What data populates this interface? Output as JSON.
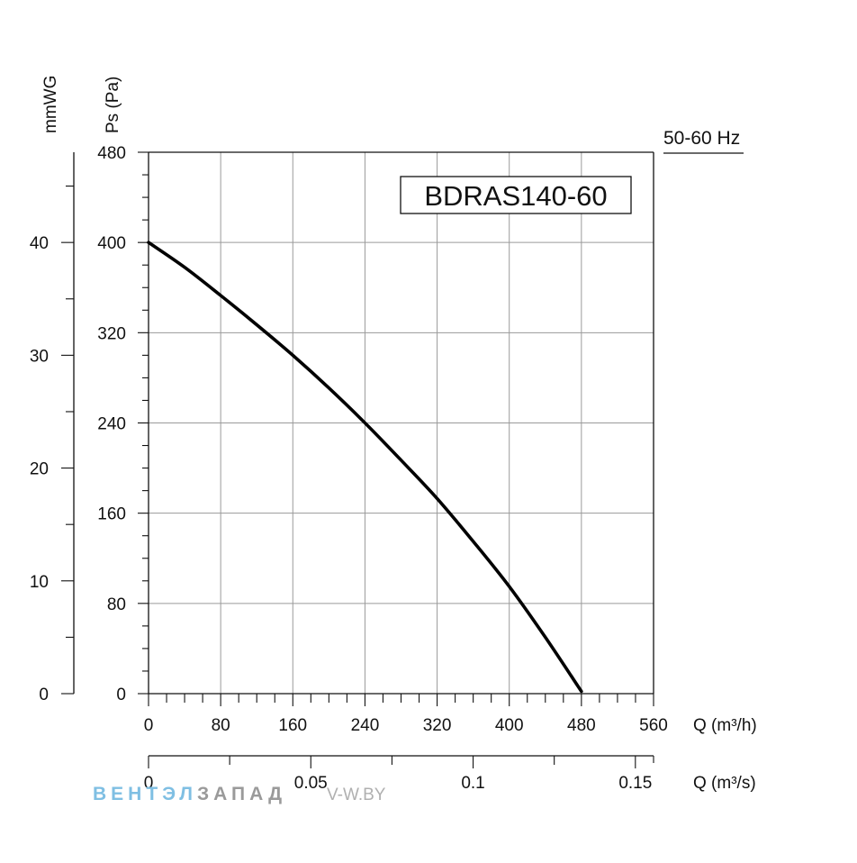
{
  "chart_data": {
    "type": "line",
    "model_label": "BDRAS140-60",
    "frequency_label": "50-60 Hz",
    "y_primary": {
      "label": "Ps (Pa)",
      "range": [
        0,
        480
      ],
      "ticks": [
        "0",
        "80",
        "160",
        "240",
        "320",
        "400",
        "480"
      ]
    },
    "y_secondary": {
      "label": "mmWG",
      "range": [
        0,
        48
      ],
      "ticks": [
        "0",
        "10",
        "20",
        "30",
        "40"
      ]
    },
    "x_primary": {
      "label": "Q (m³/h)",
      "range": [
        0,
        560
      ],
      "ticks": [
        "0",
        "80",
        "160",
        "240",
        "320",
        "400",
        "480",
        "560"
      ]
    },
    "x_secondary": {
      "label": "Q (m³/s)",
      "range": [
        0,
        0.1556
      ],
      "ticks": [
        "0",
        "0.05",
        "0.1",
        "0.15"
      ]
    },
    "grid": true,
    "series": [
      {
        "x": [
          0,
          40,
          80,
          120,
          160,
          200,
          240,
          280,
          320,
          360,
          400,
          440,
          480
        ],
        "y": [
          400,
          378,
          353,
          327,
          300,
          271,
          240,
          207,
          173,
          135,
          95,
          50,
          2
        ]
      }
    ]
  },
  "watermark": {
    "part1": "ВЕНТЭЛ",
    "part2": "ЗАПАД",
    "part3": "V-W.BY"
  }
}
